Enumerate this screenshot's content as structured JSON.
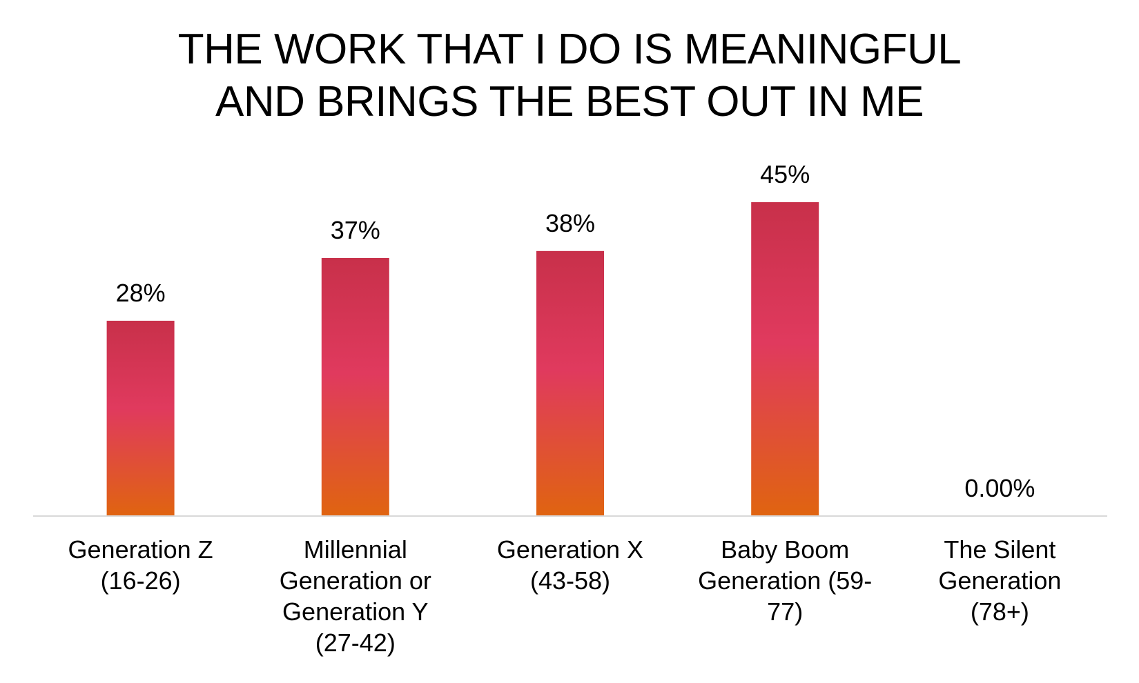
{
  "title_lines": [
    "THE WORK THAT I DO IS MEANINGFUL",
    "AND BRINGS THE BEST OUT IN ME"
  ],
  "colors": {
    "bar_top": "#c8304a",
    "bar_mid": "#e03a5e",
    "bar_bottom": "#e06410",
    "axis": "#d9d9d9"
  },
  "chart_data": {
    "type": "bar",
    "title": "THE WORK THAT I DO IS MEANINGFUL AND BRINGS THE BEST OUT IN ME",
    "xlabel": "",
    "ylabel": "",
    "ylim": [
      0,
      50
    ],
    "grid": false,
    "legend": "none",
    "categories": [
      [
        "Generation Z",
        "(16-26)"
      ],
      [
        "Millennial",
        "Generation or",
        "Generation Y",
        "(27-42)"
      ],
      [
        "Generation X",
        "(43-58)"
      ],
      [
        "Baby Boom",
        "Generation (59-",
        "77)"
      ],
      [
        "The Silent",
        "Generation",
        "(78+)"
      ]
    ],
    "values": [
      28,
      37,
      38,
      45,
      0
    ],
    "data_labels": [
      "28%",
      "37%",
      "38%",
      "45%",
      "0.00%"
    ]
  }
}
